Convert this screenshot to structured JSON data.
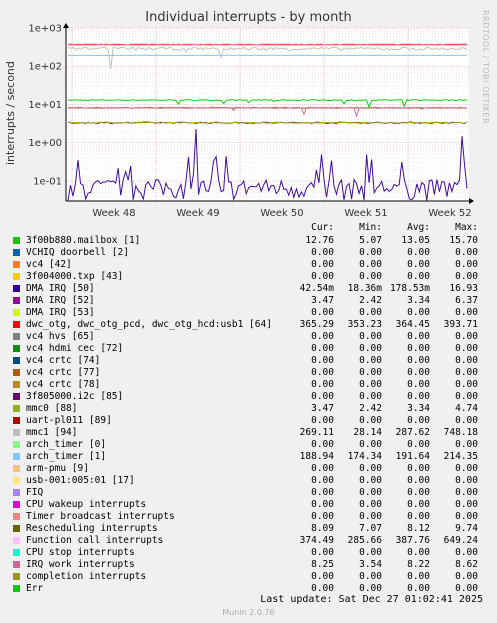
{
  "chart_data": {
    "type": "line",
    "title": "Individual interrupts - by month",
    "ylabel": "interrupts / second",
    "yscale": "log",
    "ylim": [
      0.03,
      1000
    ],
    "yticks": [
      "1e+03",
      "1e+02",
      "1e+01",
      "1e+00",
      "1e-01"
    ],
    "xticks": [
      "Week 48",
      "Week 49",
      "Week 50",
      "Week 51",
      "Week 52"
    ],
    "grid": true,
    "columns": [
      "Cur:",
      "Min:",
      "Avg:",
      "Max:"
    ],
    "series": [
      {
        "name": "3f00b880.mailbox [1]",
        "color": "#00cc00",
        "values": [
          "12.76",
          "5.07",
          "13.05",
          "15.70"
        ]
      },
      {
        "name": "VCHIQ doorbell [2]",
        "color": "#0066b3",
        "values": [
          "0.00",
          "0.00",
          "0.00",
          "0.00"
        ]
      },
      {
        "name": "vc4 [42]",
        "color": "#ff8000",
        "values": [
          "0.00",
          "0.00",
          "0.00",
          "0.00"
        ]
      },
      {
        "name": "3f004000.txp [43]",
        "color": "#ffcc00",
        "values": [
          "0.00",
          "0.00",
          "0.00",
          "0.00"
        ]
      },
      {
        "name": "DMA IRQ [50]",
        "color": "#330099",
        "values": [
          "42.54m",
          "18.36m",
          "178.53m",
          "16.93"
        ]
      },
      {
        "name": "DMA IRQ [52]",
        "color": "#990099",
        "values": [
          "3.47",
          "2.42",
          "3.34",
          "6.37"
        ]
      },
      {
        "name": "DMA IRQ [53]",
        "color": "#ccff00",
        "values": [
          "0.00",
          "0.00",
          "0.00",
          "0.00"
        ]
      },
      {
        "name": "dwc_otg, dwc_otg_pcd, dwc_otg_hcd:usb1 [64]",
        "color": "#ff0000",
        "values": [
          "365.29",
          "353.23",
          "364.45",
          "393.71"
        ]
      },
      {
        "name": "vc4 hvs [65]",
        "color": "#808080",
        "values": [
          "0.00",
          "0.00",
          "0.00",
          "0.00"
        ]
      },
      {
        "name": "vc4 hdmi cec [72]",
        "color": "#008f00",
        "values": [
          "0.00",
          "0.00",
          "0.00",
          "0.00"
        ]
      },
      {
        "name": "vc4 crtc [74]",
        "color": "#00487d",
        "values": [
          "0.00",
          "0.00",
          "0.00",
          "0.00"
        ]
      },
      {
        "name": "vc4 crtc [77]",
        "color": "#b35a00",
        "values": [
          "0.00",
          "0.00",
          "0.00",
          "0.00"
        ]
      },
      {
        "name": "vc4 crtc [78]",
        "color": "#b38f00",
        "values": [
          "0.00",
          "0.00",
          "0.00",
          "0.00"
        ]
      },
      {
        "name": "3f805000.i2c [85]",
        "color": "#6b006b",
        "values": [
          "0.00",
          "0.00",
          "0.00",
          "0.00"
        ]
      },
      {
        "name": "mmc0 [88]",
        "color": "#8fb300",
        "values": [
          "3.47",
          "2.42",
          "3.34",
          "4.74"
        ]
      },
      {
        "name": "uart-pl011 [89]",
        "color": "#b30000",
        "values": [
          "0.00",
          "0.00",
          "0.00",
          "0.00"
        ]
      },
      {
        "name": "mmc1 [94]",
        "color": "#bebebe",
        "values": [
          "269.11",
          "28.14",
          "287.62",
          "748.18"
        ]
      },
      {
        "name": "arch_timer [0]",
        "color": "#80ff80",
        "values": [
          "0.00",
          "0.00",
          "0.00",
          "0.00"
        ]
      },
      {
        "name": "arch_timer [1]",
        "color": "#80c9ff",
        "values": [
          "188.94",
          "174.34",
          "191.64",
          "214.35"
        ]
      },
      {
        "name": "arm-pmu [9]",
        "color": "#ffc080",
        "values": [
          "0.00",
          "0.00",
          "0.00",
          "0.00"
        ]
      },
      {
        "name": "usb-001:005:01 [17]",
        "color": "#ffe680",
        "values": [
          "0.00",
          "0.00",
          "0.00",
          "0.00"
        ]
      },
      {
        "name": "FIQ",
        "color": "#aa80ff",
        "values": [
          "0.00",
          "0.00",
          "0.00",
          "0.00"
        ]
      },
      {
        "name": "CPU wakeup interrupts",
        "color": "#ee00cc",
        "values": [
          "0.00",
          "0.00",
          "0.00",
          "0.00"
        ]
      },
      {
        "name": "Timer broadcast interrupts",
        "color": "#ff8080",
        "values": [
          "0.00",
          "0.00",
          "0.00",
          "0.00"
        ]
      },
      {
        "name": "Rescheduling interrupts",
        "color": "#666600",
        "values": [
          "8.09",
          "7.07",
          "8.12",
          "9.74"
        ]
      },
      {
        "name": "Function call interrupts",
        "color": "#ffbfff",
        "values": [
          "374.49",
          "285.66",
          "387.76",
          "649.24"
        ]
      },
      {
        "name": "CPU stop interrupts",
        "color": "#00ffcc",
        "values": [
          "0.00",
          "0.00",
          "0.00",
          "0.00"
        ]
      },
      {
        "name": "IRQ work interrupts",
        "color": "#cc6699",
        "values": [
          "8.25",
          "3.54",
          "8.22",
          "8.62"
        ]
      },
      {
        "name": "completion interrupts",
        "color": "#999900",
        "values": [
          "0.00",
          "0.00",
          "0.00",
          "0.00"
        ]
      },
      {
        "name": "Err",
        "color": "#00cc00",
        "values": [
          "0.00",
          "0.00",
          "0.00",
          "0.00"
        ]
      }
    ]
  },
  "footer": {
    "last_update": "Last update: Sat Dec 27 01:02:41 2025",
    "munin": "Munin 2.0.76",
    "rrdtool": "RRDTOOL / TOBI OETIKER"
  }
}
